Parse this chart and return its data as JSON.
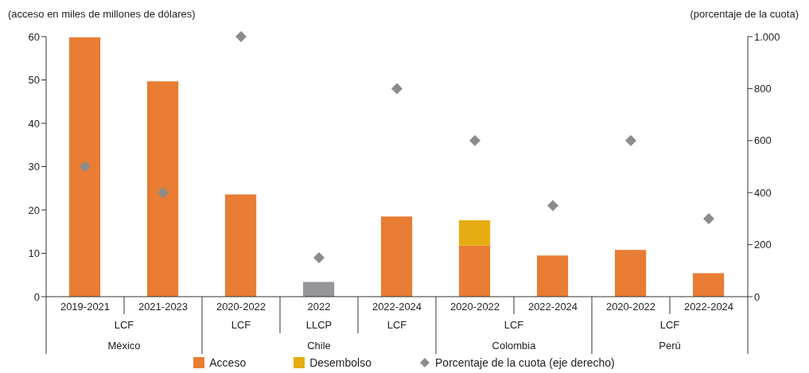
{
  "chart_data": {
    "type": "bar",
    "stacked": true,
    "ylabel": "(acceso en miles de millones de dólares)",
    "y2label": "(porcentaje de la cuota)",
    "categories": [
      "2019-2021",
      "2021-2023",
      "2020-2022",
      "2022",
      "2022-2024",
      "2020-2022",
      "2022-2024",
      "2020-2022",
      "2022-2024"
    ],
    "series": [
      {
        "name": "Acceso",
        "color": "#e87d33",
        "colors": [
          "#e87d33",
          "#e87d33",
          "#e87d33",
          "#96969a",
          "#e87d33",
          "#e87d33",
          "#e87d33",
          "#e87d33",
          "#e87d33"
        ],
        "values": [
          59.8,
          49.7,
          23.6,
          3.4,
          18.5,
          11.8,
          9.5,
          10.8,
          5.4
        ]
      },
      {
        "name": "Desembolso",
        "color": "#e6ac12",
        "values": [
          null,
          null,
          null,
          null,
          null,
          5.8,
          null,
          null,
          null
        ]
      },
      {
        "name": "Porcentaje de la cuota (eje derecho)",
        "type": "scatter",
        "axis": "y2",
        "color": "#8c8c8c",
        "marker": "diamond",
        "values": [
          500,
          400,
          1000,
          150,
          800,
          600,
          350,
          600,
          300
        ]
      }
    ],
    "ylim": [
      0,
      60
    ],
    "yticks": [
      0,
      10,
      20,
      30,
      40,
      50,
      60
    ],
    "y2lim": [
      0,
      1000
    ],
    "y2ticks": [
      0,
      200,
      400,
      600,
      800,
      {
        "value": 1000,
        "label": "1.000"
      }
    ],
    "legend": "bottom",
    "annotations": [
      "LCF",
      "LCF",
      "LLCP",
      "LCF",
      "LCF",
      "LCF",
      "México",
      "Chile",
      "Colombia",
      "Perú"
    ]
  }
}
